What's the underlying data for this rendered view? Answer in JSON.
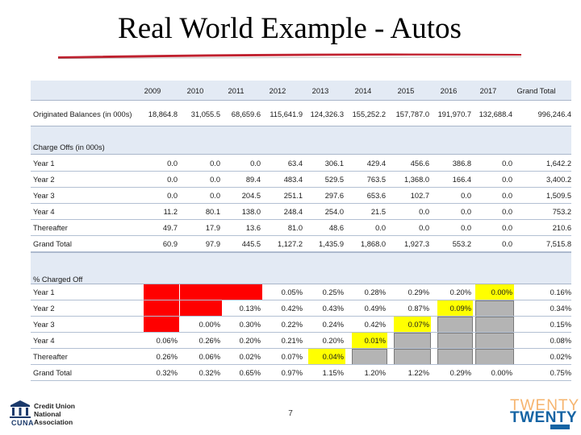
{
  "title": "Real World Example - Autos",
  "page_number": "7",
  "brands": {
    "left_lines": [
      "Credit Union",
      "National",
      "Association"
    ],
    "left_word": "CUNA",
    "right_top": "TWENTY",
    "right_bottom": "TWENTY"
  },
  "colors": {
    "red_cell": "#ff0000",
    "yellow_cell": "#ffff00",
    "gray_cell": "#b4b4b4",
    "header_band": "#e3eaf4",
    "title_rule": "#c0202e"
  },
  "table": {
    "columns": [
      "2009",
      "2010",
      "2011",
      "2012",
      "2013",
      "2014",
      "2015",
      "2016",
      "2017",
      "Grand Total"
    ],
    "originated": {
      "label": "Originated Balances (in 000s)",
      "values": [
        "18,864.8",
        "31,055.5",
        "68,659.6",
        "115,641.9",
        "124,326.3",
        "155,252.2",
        "157,787.0",
        "191,970.7",
        "132,688.4",
        "996,246.4"
      ]
    },
    "charge_offs": {
      "label": "Charge Offs (in 000s)",
      "rows": [
        {
          "label": "Year 1",
          "values": [
            "0.0",
            "0.0",
            "0.0",
            "63.4",
            "306.1",
            "429.4",
            "456.6",
            "386.8",
            "0.0",
            "1,642.2"
          ]
        },
        {
          "label": "Year 2",
          "values": [
            "0.0",
            "0.0",
            "89.4",
            "483.4",
            "529.5",
            "763.5",
            "1,368.0",
            "166.4",
            "0.0",
            "3,400.2"
          ]
        },
        {
          "label": "Year 3",
          "values": [
            "0.0",
            "0.0",
            "204.5",
            "251.1",
            "297.6",
            "653.6",
            "102.7",
            "0.0",
            "0.0",
            "1,509.5"
          ]
        },
        {
          "label": "Year 4",
          "values": [
            "11.2",
            "80.1",
            "138.0",
            "248.4",
            "254.0",
            "21.5",
            "0.0",
            "0.0",
            "0.0",
            "753.2"
          ]
        },
        {
          "label": "Thereafter",
          "values": [
            "49.7",
            "17.9",
            "13.6",
            "81.0",
            "48.6",
            "0.0",
            "0.0",
            "0.0",
            "0.0",
            "210.6"
          ]
        },
        {
          "label": "Grand Total",
          "values": [
            "60.9",
            "97.9",
            "445.5",
            "1,127.2",
            "1,435.9",
            "1,868.0",
            "1,927.3",
            "553.2",
            "0.0",
            "7,515.8"
          ]
        }
      ]
    },
    "pct_charged_off": {
      "label": "% Charged Off",
      "rows": [
        {
          "label": "Year 1",
          "values": [
            "",
            "",
            "",
            "0.05%",
            "0.25%",
            "0.28%",
            "0.29%",
            "0.20%",
            "0.00%",
            "0.16%"
          ]
        },
        {
          "label": "Year 2",
          "values": [
            "",
            "",
            "0.13%",
            "0.42%",
            "0.43%",
            "0.49%",
            "0.87%",
            "0.09%",
            "",
            "0.34%"
          ]
        },
        {
          "label": "Year 3",
          "values": [
            "",
            "0.00%",
            "0.30%",
            "0.22%",
            "0.24%",
            "0.42%",
            "0.07%",
            "",
            "",
            "0.15%"
          ]
        },
        {
          "label": "Year 4",
          "values": [
            "0.06%",
            "0.26%",
            "0.20%",
            "0.21%",
            "0.20%",
            "0.01%",
            "",
            "",
            "",
            "0.08%"
          ]
        },
        {
          "label": "Thereafter",
          "values": [
            "0.26%",
            "0.06%",
            "0.02%",
            "0.07%",
            "0.04%",
            "",
            "",
            "",
            "",
            "0.02%"
          ]
        },
        {
          "label": "Grand Total",
          "values": [
            "0.32%",
            "0.32%",
            "0.65%",
            "0.97%",
            "1.15%",
            "1.20%",
            "1.22%",
            "0.29%",
            "0.00%",
            "0.75%"
          ]
        }
      ]
    }
  }
}
